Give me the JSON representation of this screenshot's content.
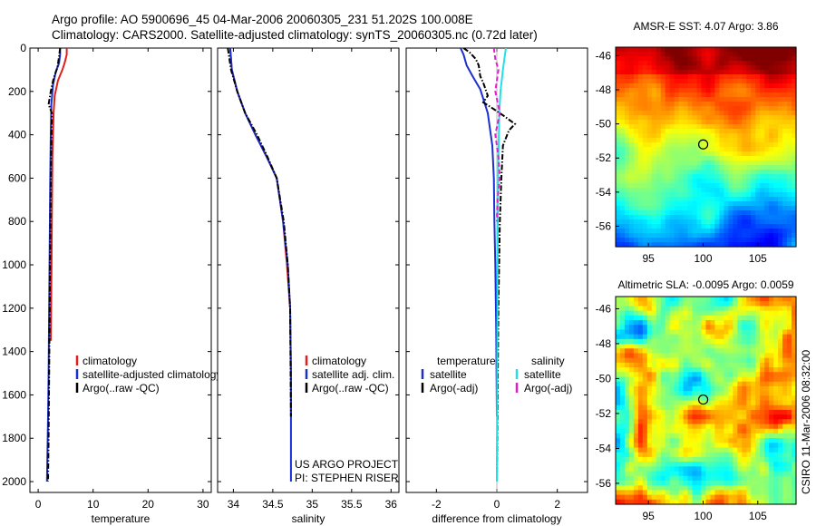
{
  "header": {
    "line1": "Argo profile: AO 5900696_45 04-Mar-2006 20060305_231 51.202S 100.008E",
    "line2": "Climatology: CARS2000. Satellite-adjusted climatology: synTS_20060305.nc (0.72d later)"
  },
  "side_label": "CSIRO 11-Mar-2006 08:32:00",
  "colors": {
    "climatology": "#e0201c",
    "satellite": "#1a2fd0",
    "argo": "#000000",
    "sat_salinity": "#21e0e6",
    "argo_salinity": "#e31ecf"
  },
  "chart_data": [
    {
      "type": "line",
      "id": "temperature-panel",
      "xlabel": "temperature",
      "ylabel": "",
      "ylim": [
        0,
        2050
      ],
      "y_inverted": true,
      "xlim": [
        -1.5,
        31.5
      ],
      "xticks": [
        0,
        10,
        20,
        30
      ],
      "yticks": [
        0,
        200,
        400,
        600,
        800,
        1000,
        1200,
        1400,
        1600,
        1800,
        2000
      ],
      "legend": {
        "placement": "lower-right",
        "entries": [
          {
            "label": "climatology",
            "color": "#e0201c"
          },
          {
            "label": "satellite-adjusted climatology",
            "color": "#1a2fd0"
          },
          {
            "label": "Argo(..raw -QC)",
            "color": "#000000"
          }
        ]
      },
      "series": [
        {
          "name": "climatology",
          "color": "#e0201c",
          "style": "solid",
          "x": [
            5.2,
            5.2,
            4.8,
            4.4,
            3.6,
            3.0,
            2.8,
            2.6,
            2.5,
            2.4,
            2.3
          ],
          "y": [
            0,
            30,
            70,
            100,
            150,
            220,
            300,
            500,
            800,
            1100,
            1350
          ]
        },
        {
          "name": "satellite-adjusted climatology",
          "color": "#1a2fd0",
          "style": "solid",
          "x": [
            4.0,
            4.0,
            3.8,
            3.2,
            2.7,
            2.4,
            2.3,
            2.2,
            2.1,
            2.0,
            1.9,
            1.8,
            1.7,
            1.6
          ],
          "y": [
            0,
            30,
            70,
            110,
            170,
            260,
            400,
            600,
            900,
            1200,
            1500,
            1700,
            1850,
            2000
          ]
        },
        {
          "name": "Argo(..raw -QC)",
          "color": "#000000",
          "style": "dashdot",
          "x": [
            4.0,
            3.8,
            3.5,
            2.8,
            2.3,
            1.9,
            2.5,
            2.4,
            2.3,
            2.2,
            2.1,
            2.0,
            1.9,
            1.8
          ],
          "y": [
            0,
            40,
            90,
            140,
            200,
            260,
            300,
            400,
            600,
            900,
            1200,
            1500,
            1800,
            2000
          ]
        }
      ]
    },
    {
      "type": "line",
      "id": "salinity-panel",
      "xlabel": "salinity",
      "ylabel": "",
      "ylim": [
        0,
        2050
      ],
      "y_inverted": true,
      "xlim": [
        33.8,
        36.1
      ],
      "xticks": [
        34,
        34.5,
        35,
        35.5,
        36
      ],
      "legend": {
        "placement": "lower-right",
        "entries": [
          {
            "label": "climatology",
            "color": "#e0201c"
          },
          {
            "label": "satellite adj. clim.",
            "color": "#1a2fd0"
          },
          {
            "label": "Argo(..raw -QC)",
            "color": "#000000"
          }
        ]
      },
      "annotation": [
        "US ARGO PROJECT",
        "PI: STEPHEN RISER"
      ],
      "series": [
        {
          "name": "climatology",
          "color": "#e0201c",
          "style": "solid",
          "x": [
            33.96,
            33.98,
            34.05,
            34.15,
            34.28,
            34.42,
            34.55,
            34.63,
            34.68,
            34.72,
            34.73,
            34.73
          ],
          "y": [
            0,
            100,
            200,
            300,
            400,
            500,
            600,
            800,
            1000,
            1200,
            1500,
            1700
          ]
        },
        {
          "name": "satellite adj. clim.",
          "color": "#1a2fd0",
          "style": "solid",
          "x": [
            33.96,
            33.98,
            34.05,
            34.15,
            34.28,
            34.42,
            34.55,
            34.63,
            34.69,
            34.72,
            34.73,
            34.73
          ],
          "y": [
            0,
            100,
            200,
            300,
            400,
            500,
            600,
            800,
            1000,
            1200,
            1500,
            2000
          ]
        },
        {
          "name": "Argo(..raw -QC)",
          "color": "#000000",
          "style": "dashdot",
          "x": [
            33.93,
            33.97,
            34.05,
            34.15,
            34.3,
            34.43,
            34.55,
            34.64,
            34.69,
            34.72,
            34.73
          ],
          "y": [
            0,
            100,
            200,
            300,
            400,
            500,
            600,
            800,
            1000,
            1200,
            1700
          ]
        }
      ]
    },
    {
      "type": "line",
      "id": "difference-panel",
      "xlabel": "difference from climatology",
      "ylabel": "",
      "ylim": [
        0,
        2050
      ],
      "y_inverted": true,
      "xlim": [
        -3.0,
        3.0
      ],
      "xticks": [
        -2,
        0,
        2
      ],
      "legend": {
        "placement": "lower-center",
        "entries": [
          {
            "label": "temperature",
            "color": ""
          },
          {
            "label": "satellite",
            "color": "#1a2fd0"
          },
          {
            "label": "Argo(-adj)",
            "color": "#000000"
          },
          {
            "label": "salinity",
            "color": ""
          },
          {
            "label": "satellite",
            "color": "#21e0e6"
          },
          {
            "label": "Argo(-adj)",
            "color": "#e31ecf"
          }
        ]
      },
      "series": [
        {
          "name": "temperature satellite",
          "color": "#1a2fd0",
          "style": "solid",
          "x": [
            -1.2,
            -1.1,
            -1.0,
            -0.8,
            -0.55,
            -0.3,
            -0.15,
            -0.1,
            -0.08,
            -0.05,
            -0.02,
            0.0
          ],
          "y": [
            0,
            30,
            80,
            130,
            190,
            300,
            450,
            600,
            800,
            1000,
            1300,
            1700
          ]
        },
        {
          "name": "temperature Argo(-adj)",
          "color": "#000000",
          "style": "dashdot",
          "x": [
            -1.1,
            -0.9,
            -0.7,
            -0.6,
            -0.55,
            -0.45,
            -0.3,
            -0.45,
            0.1,
            0.3,
            0.4,
            0.6,
            0.4,
            0.2,
            0.15,
            0.1,
            0.05,
            0.0
          ],
          "y": [
            0,
            20,
            50,
            80,
            130,
            160,
            220,
            250,
            300,
            320,
            330,
            350,
            380,
            450,
            600,
            800,
            1200,
            2000
          ]
        },
        {
          "name": "salinity satellite",
          "color": "#21e0e6",
          "style": "solid",
          "x": [
            0.3,
            0.25,
            0.2,
            0.12,
            0.08,
            0.05,
            0.03,
            0.02,
            0.01,
            0.0
          ],
          "y": [
            0,
            50,
            100,
            200,
            300,
            500,
            800,
            1200,
            1600,
            2000
          ]
        },
        {
          "name": "salinity Argo(-adj)",
          "color": "#e31ecf",
          "style": "dashed",
          "x": [
            -0.1,
            -0.05,
            0.05,
            -0.05,
            0.1,
            -0.05,
            0.05,
            0.1,
            0.02,
            0.0
          ],
          "y": [
            0,
            50,
            100,
            200,
            300,
            400,
            500,
            600,
            700,
            800
          ]
        }
      ]
    },
    {
      "type": "heatmap",
      "id": "sst-map",
      "title": "AMSR-E SST: 4.07 Argo: 3.86",
      "x": [
        92,
        108.5
      ],
      "xlim": [
        92,
        108.5
      ],
      "ylim": [
        -57.2,
        -45.5
      ],
      "xticks": [
        95,
        100,
        105
      ],
      "yticks": [
        -46,
        -48,
        -50,
        -52,
        -54,
        -56
      ],
      "marker": {
        "lon": 100.008,
        "lat": -51.202
      },
      "colorscale": "jet",
      "pattern": "meridional gradient: warm (red) north, cool (blue) south"
    },
    {
      "type": "heatmap",
      "id": "sla-map",
      "title": "Altimetric SLA: -0.0095 Argo: 0.0059",
      "xlim": [
        92,
        108.5
      ],
      "ylim": [
        -57.2,
        -45.3
      ],
      "xticks": [
        95,
        100,
        105
      ],
      "yticks": [
        -46,
        -48,
        -50,
        -52,
        -54,
        -56
      ],
      "marker": {
        "lon": 100.008,
        "lat": -51.202
      },
      "colorscale": "jet",
      "pattern": "patchy eddy field, mostly green/yellow with orange and blue patches"
    }
  ]
}
